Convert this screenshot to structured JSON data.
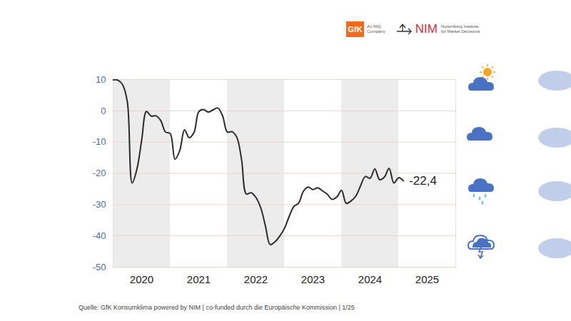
{
  "chart_data": {
    "type": "line",
    "color": "#2b2b2b",
    "x": [
      2020.0,
      2020.083,
      2020.167,
      2020.25,
      2020.333,
      2020.417,
      2020.5,
      2020.583,
      2020.667,
      2020.75,
      2020.833,
      2020.917,
      2021.0,
      2021.083,
      2021.167,
      2021.25,
      2021.333,
      2021.417,
      2021.5,
      2021.583,
      2021.667,
      2021.75,
      2021.833,
      2021.917,
      2022.0,
      2022.083,
      2022.167,
      2022.25,
      2022.333,
      2022.417,
      2022.5,
      2022.583,
      2022.667,
      2022.75,
      2022.833,
      2022.917,
      2023.0,
      2023.083,
      2023.167,
      2023.25,
      2023.333,
      2023.417,
      2023.5,
      2023.583,
      2023.667,
      2023.75,
      2023.833,
      2023.917,
      2024.0,
      2024.083,
      2024.167,
      2024.25,
      2024.333,
      2024.417,
      2024.5,
      2024.583,
      2024.667,
      2024.75,
      2024.833,
      2024.917,
      2025.0,
      2025.083
    ],
    "values": [
      9.9,
      9.8,
      8.3,
      2.7,
      -23.1,
      -18.6,
      -9.4,
      -0.2,
      -1.7,
      -1.6,
      -3.1,
      -6.8,
      -7.3,
      -15.5,
      -12.7,
      -6.1,
      -8.6,
      -6.9,
      -0.3,
      0.4,
      -0.4,
      0.3,
      0.9,
      -1.6,
      -6.8,
      -6.7,
      -8.5,
      -15.7,
      -26.6,
      -26.2,
      -27.7,
      -30.9,
      -36.8,
      -42.8,
      -41.9,
      -40.1,
      -37.6,
      -33.8,
      -30.6,
      -29.5,
      -25.7,
      -24.4,
      -25.2,
      -24.6,
      -25.6,
      -26.7,
      -28.3,
      -27.6,
      -25.4,
      -29.6,
      -28.8,
      -27.3,
      -24.0,
      -21.0,
      -21.6,
      -18.6,
      -22.0,
      -21.2,
      -18.4,
      -23.1,
      -21.4,
      -22.4
    ],
    "xlim": [
      2020,
      2026
    ],
    "xticks": [
      {
        "value": 2020.5,
        "label": "2020"
      },
      {
        "value": 2021.5,
        "label": "2021"
      },
      {
        "value": 2022.5,
        "label": "2022"
      },
      {
        "value": 2023.5,
        "label": "2023"
      },
      {
        "value": 2024.5,
        "label": "2024"
      },
      {
        "value": 2025.5,
        "label": "2025"
      }
    ],
    "ylim": [
      -50,
      10
    ],
    "yticks": [
      -50,
      -40,
      -30,
      -20,
      -10,
      0,
      10
    ],
    "grid": true,
    "annotations": [
      {
        "text": "-22,4",
        "x": 2025.083,
        "y": -22.4
      }
    ],
    "source": "Quelle: GfK Konsumklima powered by NIM | co-funded durch die Europäische Kommission | 1/25",
    "logos": {
      "gfk": {
        "mark": "GfK",
        "lines": [
          "An NIQ",
          "Company"
        ]
      },
      "nim": {
        "mark": "NIM",
        "lines": [
          "Nuremberg Institute",
          "for Market Decisions"
        ]
      }
    }
  }
}
